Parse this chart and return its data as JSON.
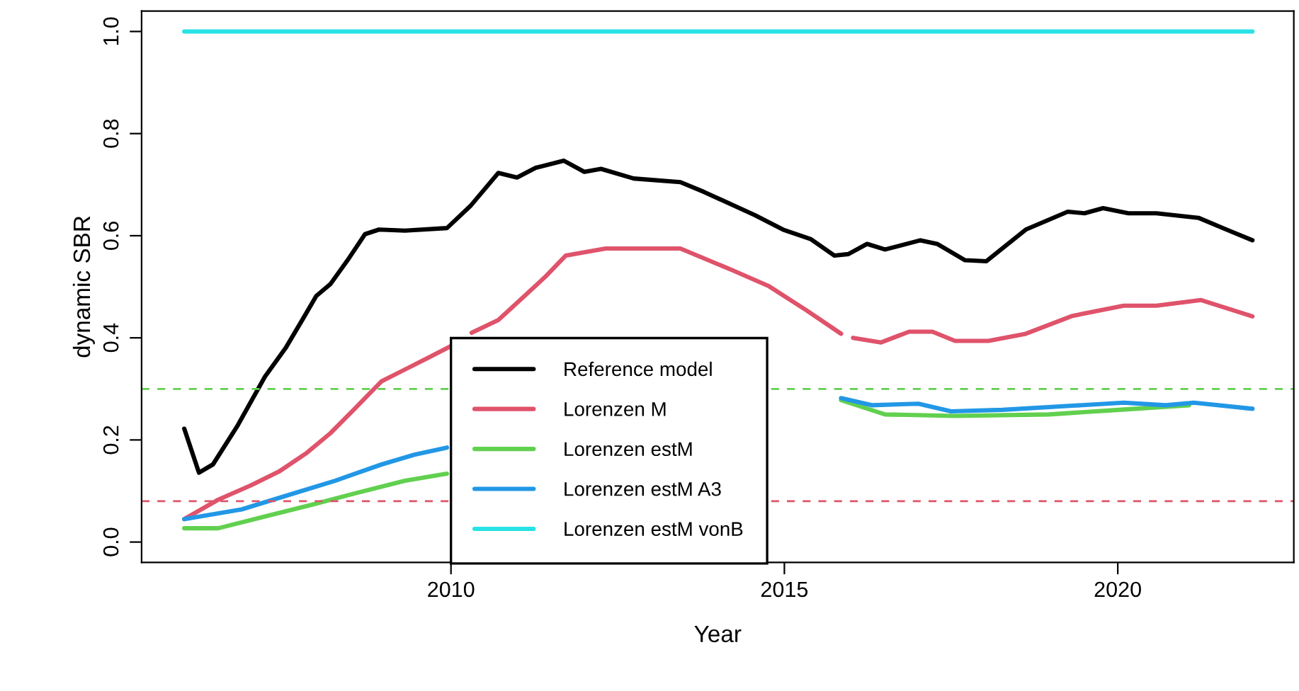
{
  "chart_data": {
    "type": "line",
    "xlabel": "Year",
    "ylabel": "dynamic SBR",
    "xlim": [
      2005.36,
      2022.64
    ],
    "xticks": [
      2010,
      2015,
      2020
    ],
    "ylim": [
      -0.04,
      1.04
    ],
    "yticks": [
      {
        "value": 0,
        "label": "0.0"
      },
      {
        "value": 0.2,
        "label": "0.2"
      },
      {
        "value": 0.4,
        "label": "0.4"
      },
      {
        "value": 0.6,
        "label": "0.6"
      },
      {
        "value": 0.8,
        "label": "0.8"
      },
      {
        "value": 1,
        "label": "1.0"
      }
    ],
    "grid": false,
    "legend": "bottom",
    "line_style": "solid",
    "marker": "none",
    "series": [
      {
        "name": "Reference model",
        "color": "#000000",
        "x": [
          2006.0,
          2006.22,
          2006.43,
          2006.79,
          2007.21,
          2007.52,
          2007.77,
          2007.98,
          2008.19,
          2008.47,
          2008.71,
          2008.92,
          2009.31,
          2009.94,
          2010.29,
          2010.71,
          2010.99,
          2011.27,
          2011.69,
          2012.0,
          2012.25,
          2012.74,
          2013.44,
          2013.79,
          2014.56,
          2014.98,
          2015.4,
          2015.75,
          2015.96,
          2016.24,
          2016.51,
          2017.04,
          2017.29,
          2017.71,
          2018.03,
          2018.62,
          2019.25,
          2019.5,
          2019.78,
          2020.16,
          2020.58,
          2021.21,
          2021.63,
          2022.02
        ],
        "values": [
          0.222,
          0.136,
          0.152,
          0.226,
          0.324,
          0.38,
          0.435,
          0.482,
          0.505,
          0.556,
          0.603,
          0.612,
          0.61,
          0.615,
          0.658,
          0.723,
          0.714,
          0.733,
          0.747,
          0.725,
          0.731,
          0.712,
          0.705,
          0.686,
          0.64,
          0.612,
          0.593,
          0.561,
          0.564,
          0.584,
          0.573,
          0.591,
          0.584,
          0.552,
          0.55,
          0.612,
          0.647,
          0.644,
          0.654,
          0.644,
          0.644,
          0.635,
          0.612,
          0.591
        ]
      },
      {
        "name": "Lorenzen M",
        "color": "#df536b",
        "x": [
          2006.0,
          2006.51,
          2007.0,
          2007.42,
          2007.84,
          2008.19,
          2008.54,
          2008.96,
          2009.31,
          2009.66,
          2010.0,
          2010.15,
          2010.31,
          2010.71,
          2011.06,
          2011.41,
          2011.72,
          2012.32,
          2013.44,
          2014.21,
          2014.77,
          2015.33,
          2015.85,
          2015.95,
          2016.03,
          2016.45,
          2016.87,
          2017.22,
          2017.56,
          2018.06,
          2018.62,
          2019.32,
          2020.09,
          2020.58,
          2021.25,
          2022.02
        ],
        "values": [
          0.045,
          0.083,
          0.111,
          0.138,
          0.175,
          0.213,
          0.259,
          0.315,
          0.338,
          0.361,
          0.384,
          null,
          0.41,
          0.435,
          0.477,
          0.519,
          0.561,
          0.575,
          0.575,
          0.533,
          0.501,
          0.454,
          0.408,
          null,
          0.4,
          0.391,
          0.412,
          0.412,
          0.394,
          0.394,
          0.408,
          0.443,
          0.463,
          0.463,
          0.474,
          0.442
        ]
      },
      {
        "name": "Lorenzen estM",
        "color": "#61d04f",
        "x": [
          2006.0,
          2006.51,
          2007.21,
          2007.91,
          2008.61,
          2009.31,
          2009.94,
          2012.0,
          2015.85,
          2016.51,
          2017.56,
          2018.97,
          2020.02,
          2021.07
        ],
        "values": [
          0.027,
          0.027,
          0.05,
          0.073,
          0.097,
          0.12,
          0.134,
          null,
          0.278,
          0.25,
          0.247,
          0.25,
          0.259,
          0.268
        ]
      },
      {
        "name": "Lorenzen estM A3",
        "color": "#2297e6",
        "x": [
          2006.0,
          2006.86,
          2007.56,
          2008.26,
          2008.96,
          2009.45,
          2009.94,
          2012.0,
          2015.85,
          2016.31,
          2017.01,
          2017.5,
          2018.27,
          2019.32,
          2020.09,
          2020.72,
          2021.14,
          2022.02
        ],
        "values": [
          0.045,
          0.064,
          0.092,
          0.12,
          0.152,
          0.171,
          0.185,
          null,
          0.282,
          0.268,
          0.271,
          0.256,
          0.259,
          0.267,
          0.273,
          0.268,
          0.273,
          0.261
        ]
      },
      {
        "name": "Lorenzen estM vonB",
        "color": "#28e2e5",
        "x": [
          2006.0,
          2022.02
        ],
        "values": [
          1.0,
          1.0
        ]
      }
    ],
    "ref_lines": [
      {
        "axis": "y",
        "value": 0.3,
        "color": "#61d04f",
        "line_style": "dashed"
      },
      {
        "axis": "y",
        "value": 0.08,
        "color": "#df536b",
        "line_style": "dashed"
      }
    ]
  }
}
